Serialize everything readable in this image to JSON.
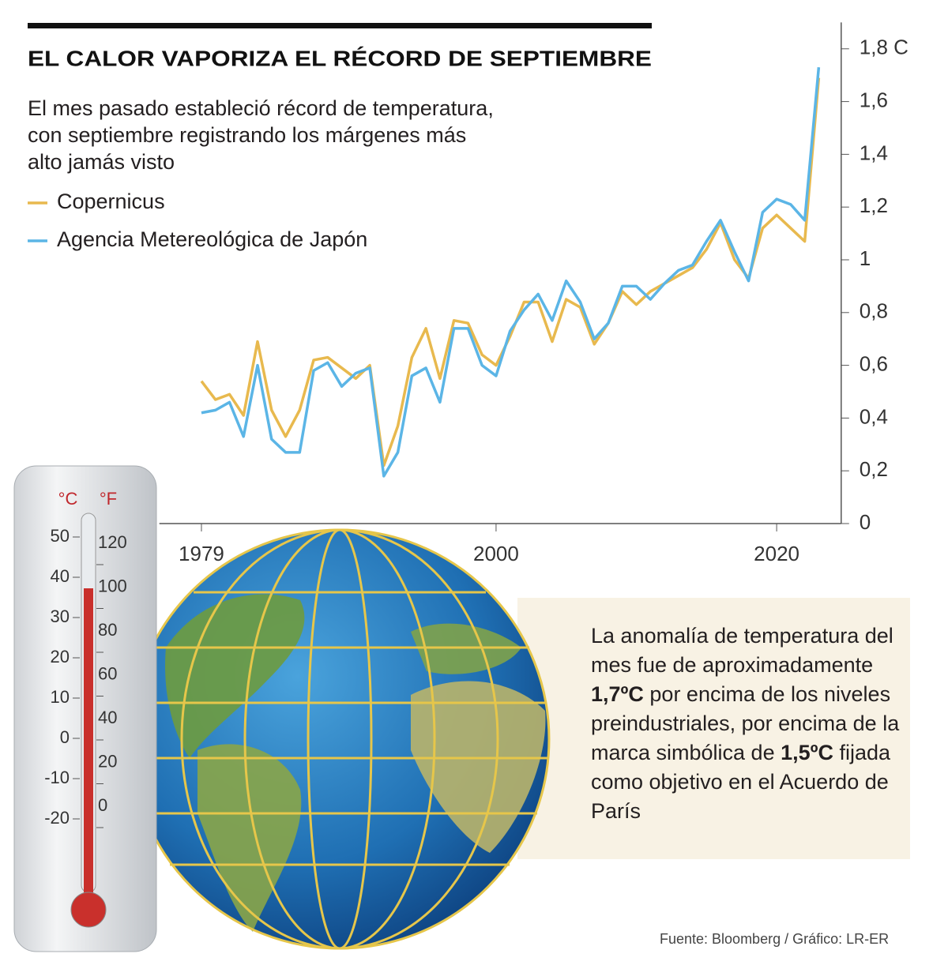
{
  "chart_data": {
    "type": "line",
    "title": "EL CALOR VAPORIZA EL RÉCORD DE SEPTIEMBRE",
    "subtitle": "El mes pasado estableció récord de temperatura, con septiembre registrando los márgenes más alto jamás visto",
    "x": [
      1979,
      1980,
      1981,
      1982,
      1983,
      1984,
      1985,
      1986,
      1987,
      1988,
      1989,
      1990,
      1991,
      1992,
      1993,
      1994,
      1995,
      1996,
      1997,
      1998,
      1999,
      2000,
      2001,
      2002,
      2003,
      2004,
      2005,
      2006,
      2007,
      2008,
      2009,
      2010,
      2011,
      2012,
      2013,
      2014,
      2015,
      2016,
      2017,
      2018,
      2019,
      2020,
      2021,
      2022,
      2023
    ],
    "series": [
      {
        "name": "Copernicus",
        "color": "#e8b94e",
        "values": [
          0.54,
          0.47,
          0.49,
          0.41,
          0.69,
          0.43,
          0.33,
          0.43,
          0.62,
          0.63,
          0.59,
          0.55,
          0.6,
          0.22,
          0.37,
          0.63,
          0.74,
          0.55,
          0.77,
          0.76,
          0.64,
          0.6,
          0.71,
          0.84,
          0.84,
          0.69,
          0.85,
          0.82,
          0.68,
          0.76,
          0.88,
          0.83,
          0.88,
          0.91,
          0.94,
          0.97,
          1.04,
          1.14,
          1.0,
          0.93,
          1.12,
          1.17,
          1.12,
          1.07,
          1.69
        ]
      },
      {
        "name": "Agencia Metereológica de Japón",
        "color": "#5bb5e6",
        "values": [
          0.42,
          0.43,
          0.46,
          0.33,
          0.6,
          0.32,
          0.27,
          0.27,
          0.58,
          0.61,
          0.52,
          0.57,
          0.59,
          0.18,
          0.27,
          0.56,
          0.59,
          0.46,
          0.74,
          0.74,
          0.6,
          0.56,
          0.73,
          0.81,
          0.87,
          0.77,
          0.92,
          0.84,
          0.7,
          0.76,
          0.9,
          0.9,
          0.85,
          0.91,
          0.96,
          0.98,
          1.07,
          1.15,
          1.03,
          0.92,
          1.18,
          1.23,
          1.21,
          1.15,
          1.73
        ]
      }
    ],
    "xlim": [
      1976,
      2024.6
    ],
    "xticks": [
      1979,
      2000,
      2020
    ],
    "ylim": [
      0,
      1.9
    ],
    "yticks": [
      0,
      {
        "value": 0.2,
        "label": "0,2"
      },
      {
        "value": 0.4,
        "label": "0,4"
      },
      {
        "value": 0.6,
        "label": "0,6"
      },
      {
        "value": 0.8,
        "label": "0,8"
      },
      1,
      {
        "value": 1.2,
        "label": "1,2"
      },
      {
        "value": 1.4,
        "label": "1,4"
      },
      {
        "value": 1.6,
        "label": "1,6"
      },
      {
        "value": 1.8,
        "label": "1,8 C"
      }
    ],
    "annotation": [
      "La anomalía de temperatura del mes fue de aproximadamente ",
      "1,7ºC",
      " por encima de los niveles preindustriales, por encima de la marca simbólica de ",
      "1,5ºC",
      " fijada como objetivo en el Acuerdo de París"
    ],
    "source": "Fuente: Bloomberg / Gráfico: LR-ER"
  },
  "thermometer": {
    "celsius_label": "°C",
    "fahrenheit_label": "°F",
    "celsius_ticks": [
      "50",
      "40",
      "30",
      "20",
      "10",
      "0",
      "-10",
      "-20"
    ],
    "fahrenheit_ticks": [
      "120",
      "100",
      "80",
      "60",
      "40",
      "20",
      "0"
    ]
  }
}
